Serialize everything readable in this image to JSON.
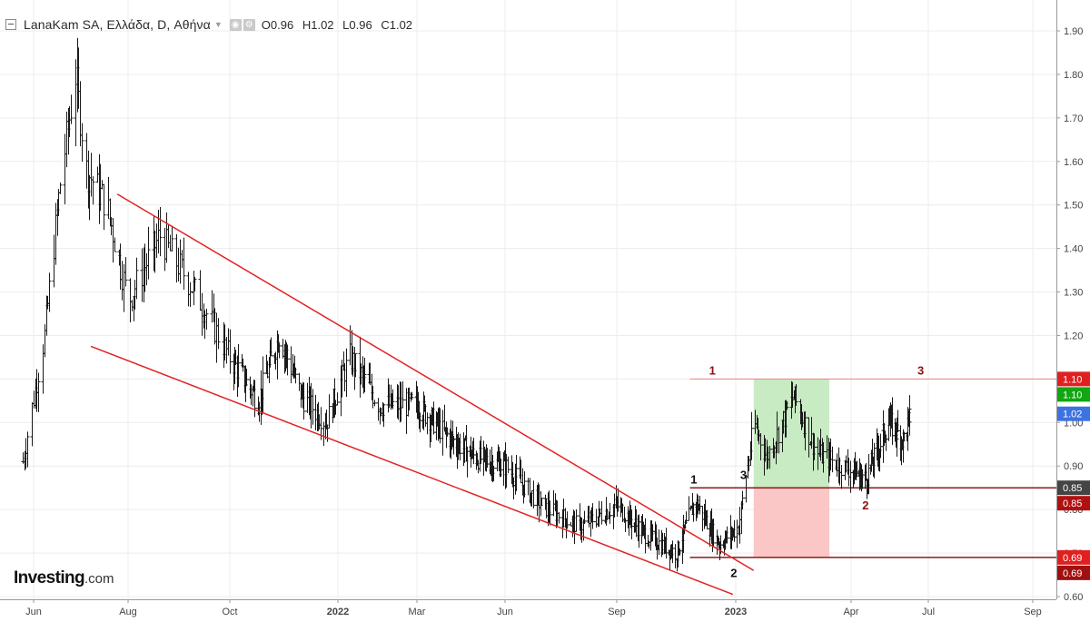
{
  "header": {
    "title": "LanaKam SA, Ελλάδα, D, Αθήνα",
    "ohlc": [
      {
        "key": "O",
        "value": "0.96"
      },
      {
        "key": "H",
        "value": "1.02"
      },
      {
        "key": "L",
        "value": "0.96"
      },
      {
        "key": "C",
        "value": "1.02"
      }
    ]
  },
  "logo": {
    "main": "Investing",
    "suffix": ".com"
  },
  "colors": {
    "bars": "#1a1a1a",
    "trendline": "#e32222",
    "grid": "#ececec",
    "target_zone": "#c8ebc4",
    "stop_zone": "#fbc6c6",
    "pattern_label": "#8b1010",
    "marker_label": "#111111"
  },
  "chart_data": {
    "type": "ohlc",
    "price_axis": {
      "range": [
        0.6,
        1.92
      ],
      "ticks": [
        "1.90",
        "1.80",
        "1.70",
        "1.60",
        "1.50",
        "1.40",
        "1.30",
        "1.20",
        "1.10",
        "1.00",
        "0.90",
        "0.80",
        "0.70",
        "0.60"
      ]
    },
    "time_axis": {
      "ticks": [
        {
          "label": "Jun",
          "date": "2021-06-01",
          "bold": false
        },
        {
          "label": "Aug",
          "date": "2021-08-01",
          "bold": false
        },
        {
          "label": "Oct",
          "date": "2021-10-01",
          "bold": false
        },
        {
          "label": "2022",
          "date": "2022-01-01",
          "bold": true
        },
        {
          "label": "Mar",
          "date": "2022-03-01",
          "bold": false
        },
        {
          "label": "Jun",
          "date": "2022-06-01",
          "bold": false
        },
        {
          "label": "Sep",
          "date": "2022-09-01",
          "bold": false
        },
        {
          "label": "2023",
          "date": "2023-01-01",
          "bold": true
        },
        {
          "label": "Apr",
          "date": "2023-04-01",
          "bold": false
        },
        {
          "label": "Jul",
          "date": "2023-07-01",
          "bold": false
        },
        {
          "label": "Sep",
          "date": "2023-09-01",
          "bold": false
        }
      ]
    },
    "price_markers": [
      {
        "value": 1.1,
        "label": "1.10",
        "color": "#e02020"
      },
      {
        "value": 1.1,
        "label": "1.10",
        "color": "#12a612"
      },
      {
        "value": 1.02,
        "label": "1.02",
        "color": "#3d73e0"
      },
      {
        "value": 0.85,
        "label": "0.85",
        "color": "#444444"
      },
      {
        "value": 0.85,
        "label": "0.85",
        "color": "#b01010"
      },
      {
        "value": 0.69,
        "label": "0.69",
        "color": "#e02020"
      },
      {
        "value": 0.69,
        "label": "0.69",
        "color": "#a01010"
      }
    ],
    "trendlines": [
      {
        "from": {
          "date": "2021-07-25",
          "price": 1.525
        },
        "to": {
          "date": "2023-01-15",
          "price": 0.66
        }
      },
      {
        "from": {
          "date": "2021-07-08",
          "price": 1.175
        },
        "to": {
          "date": "2022-12-29",
          "price": 0.605
        }
      }
    ],
    "horizontal_lines": [
      {
        "price": 1.1,
        "from": "2022-11-15",
        "to": "2023-09-30",
        "color": "#ef8080",
        "width": 1
      },
      {
        "price": 0.85,
        "from": "2022-11-15",
        "to": "2023-09-30",
        "color": "#8b1a1a",
        "width": 1.5
      },
      {
        "price": 0.69,
        "from": "2022-11-15",
        "to": "2023-09-30",
        "color": "#8b1a1a",
        "width": 1.5
      }
    ],
    "zones": [
      {
        "name": "target",
        "from": "2023-01-15",
        "to": "2023-03-15",
        "top": 1.1,
        "bottom": 0.85
      },
      {
        "name": "stop",
        "from": "2023-01-15",
        "to": "2023-03-15",
        "top": 0.85,
        "bottom": 0.69
      }
    ],
    "labels": [
      {
        "text": "1",
        "date": "2022-12-08",
        "price": 1.11,
        "color": "#8b1010"
      },
      {
        "text": "3",
        "date": "2023-06-22",
        "price": 1.11,
        "color": "#8b1010"
      },
      {
        "text": "1",
        "date": "2022-11-19",
        "price": 0.86,
        "color": "#111111"
      },
      {
        "text": "3",
        "date": "2023-01-07",
        "price": 0.87,
        "color": "#111111"
      },
      {
        "text": "2",
        "date": "2023-04-18",
        "price": 0.8,
        "color": "#8b1010"
      },
      {
        "text": "2",
        "date": "2022-12-30",
        "price": 0.645,
        "color": "#111111"
      }
    ],
    "key_points": [
      {
        "date": "2021-05-25",
        "price": 0.91
      },
      {
        "date": "2021-06-08",
        "price": 1.2
      },
      {
        "date": "2021-06-18",
        "price": 1.55
      },
      {
        "date": "2021-06-28",
        "price": 1.8
      },
      {
        "date": "2021-07-05",
        "price": 1.58
      },
      {
        "date": "2021-07-18",
        "price": 1.5
      },
      {
        "date": "2021-08-01",
        "price": 1.28
      },
      {
        "date": "2021-08-20",
        "price": 1.43
      },
      {
        "date": "2021-09-10",
        "price": 1.3
      },
      {
        "date": "2021-10-01",
        "price": 1.15
      },
      {
        "date": "2021-10-25",
        "price": 1.05
      },
      {
        "date": "2021-11-12",
        "price": 1.2
      },
      {
        "date": "2021-12-01",
        "price": 1.06
      },
      {
        "date": "2021-12-22",
        "price": 1.0
      },
      {
        "date": "2022-01-10",
        "price": 1.15
      },
      {
        "date": "2022-02-01",
        "price": 1.04
      },
      {
        "date": "2022-03-01",
        "price": 1.04
      },
      {
        "date": "2022-04-01",
        "price": 0.97
      },
      {
        "date": "2022-05-01",
        "price": 0.92
      },
      {
        "date": "2022-06-01",
        "price": 0.9
      },
      {
        "date": "2022-07-01",
        "price": 0.81
      },
      {
        "date": "2022-08-01",
        "price": 0.76
      },
      {
        "date": "2022-09-01",
        "price": 0.81
      },
      {
        "date": "2022-10-01",
        "price": 0.74
      },
      {
        "date": "2022-11-01",
        "price": 0.7
      },
      {
        "date": "2022-11-20",
        "price": 0.82
      },
      {
        "date": "2022-12-15",
        "price": 0.72
      },
      {
        "date": "2023-01-03",
        "price": 0.76
      },
      {
        "date": "2023-01-15",
        "price": 1.0
      },
      {
        "date": "2023-01-25",
        "price": 0.92
      },
      {
        "date": "2023-02-15",
        "price": 1.06
      },
      {
        "date": "2023-03-05",
        "price": 0.93
      },
      {
        "date": "2023-03-25",
        "price": 0.9
      },
      {
        "date": "2023-04-18",
        "price": 0.87
      },
      {
        "date": "2023-05-15",
        "price": 1.0
      },
      {
        "date": "2023-06-01",
        "price": 0.96
      },
      {
        "date": "2023-06-10",
        "price": 1.02
      }
    ]
  }
}
